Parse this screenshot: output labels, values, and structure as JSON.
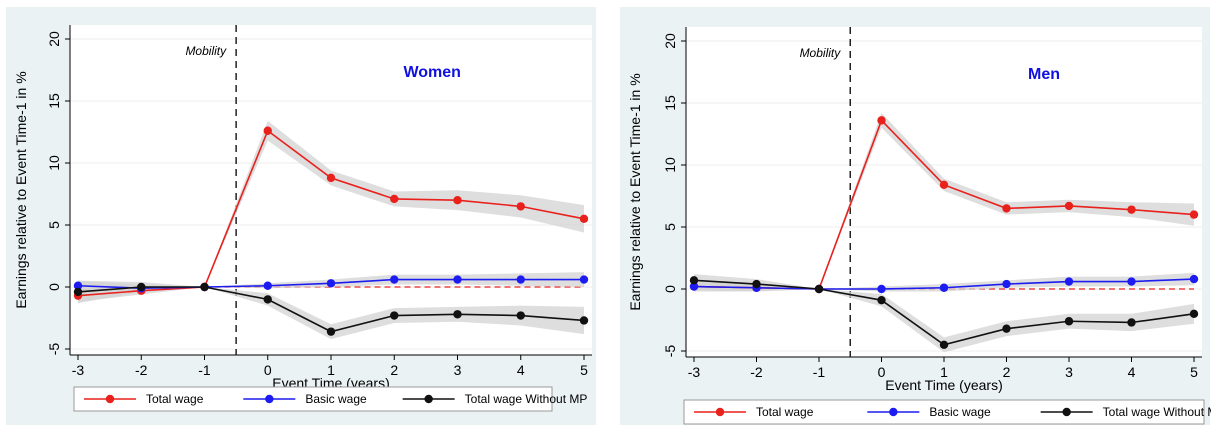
{
  "colors": {
    "outer_bg": "#eaf2f3",
    "plot_bg": "#ffffff",
    "total_wage": "#e8211c",
    "basic_wage": "#1c1cf0",
    "without_mp": "#111111",
    "ci_band": "#d3d3d3",
    "title": "#1010e0",
    "zero_line": "#e8211c"
  },
  "chart_data": [
    {
      "type": "line",
      "title": "Women",
      "annotation": "Mobility",
      "xlabel": "Event Time (years)",
      "ylabel": "Earnings relative to Event Time-1 in %",
      "x": [
        -3,
        -2,
        -1,
        0,
        1,
        2,
        3,
        4,
        5
      ],
      "x_ticks": [
        "-3",
        "-2",
        "-1",
        "0",
        "1",
        "2",
        "3",
        "4",
        "5"
      ],
      "y_ticks": [
        -5,
        0,
        5,
        10,
        15,
        20
      ],
      "xlim": [
        -3,
        5
      ],
      "ylim": [
        -5,
        20
      ],
      "event_line_x": -0.5,
      "grid": true,
      "legend_position": "bottom",
      "series": [
        {
          "name": "Total wage",
          "color_key": "total_wage",
          "values": [
            -0.7,
            -0.3,
            0,
            12.6,
            8.8,
            7.1,
            7.0,
            6.5,
            5.5
          ],
          "ci_low": [
            -1.2,
            -0.6,
            0,
            11.8,
            8.2,
            6.5,
            6.2,
            5.6,
            4.4
          ],
          "ci_high": [
            -0.2,
            0.0,
            0,
            13.4,
            9.4,
            7.7,
            7.8,
            7.4,
            6.6
          ]
        },
        {
          "name": "Basic wage",
          "color_key": "basic_wage",
          "values": [
            0.1,
            -0.1,
            0,
            0.1,
            0.3,
            0.6,
            0.6,
            0.6,
            0.6
          ],
          "ci_low": [
            -0.3,
            -0.4,
            0,
            -0.1,
            0.0,
            0.2,
            0.2,
            0.1,
            0.0
          ],
          "ci_high": [
            0.5,
            0.2,
            0,
            0.3,
            0.6,
            1.0,
            1.0,
            1.1,
            1.2
          ]
        },
        {
          "name": "Total wage Without MP",
          "color_key": "without_mp",
          "values": [
            -0.4,
            0.0,
            0,
            -1.0,
            -3.6,
            -2.3,
            -2.2,
            -2.3,
            -2.7
          ],
          "ci_low": [
            -1.3,
            -0.4,
            0,
            -1.5,
            -4.2,
            -2.9,
            -2.8,
            -3.1,
            -3.8
          ],
          "ci_high": [
            0.5,
            0.4,
            0,
            -0.5,
            -3.0,
            -1.7,
            -1.6,
            -1.5,
            -1.6
          ]
        }
      ]
    },
    {
      "type": "line",
      "title": "Men",
      "annotation": "Mobility",
      "xlabel": "Event Time (years)",
      "ylabel": "Earnings relative to Event Time-1 in %",
      "x": [
        -3,
        -2,
        -1,
        0,
        1,
        2,
        3,
        4,
        5
      ],
      "x_ticks": [
        "-3",
        "-2",
        "-1",
        "0",
        "1",
        "2",
        "3",
        "4",
        "5"
      ],
      "y_ticks": [
        -5,
        0,
        5,
        10,
        15,
        20
      ],
      "xlim": [
        -3,
        5
      ],
      "ylim": [
        -5,
        20
      ],
      "event_line_x": -0.5,
      "grid": true,
      "legend_position": "bottom",
      "series": [
        {
          "name": "Total wage",
          "color_key": "total_wage",
          "values": [
            0.2,
            0.1,
            0,
            13.6,
            8.4,
            6.5,
            6.7,
            6.4,
            6.0
          ],
          "ci_low": [
            -0.2,
            -0.2,
            0,
            13.0,
            7.9,
            6.0,
            6.2,
            5.8,
            5.1
          ],
          "ci_high": [
            0.6,
            0.4,
            0,
            14.2,
            8.9,
            7.0,
            7.2,
            7.0,
            6.9
          ]
        },
        {
          "name": "Basic wage",
          "color_key": "basic_wage",
          "values": [
            0.2,
            0.1,
            0,
            0.0,
            0.1,
            0.4,
            0.6,
            0.6,
            0.8
          ],
          "ci_low": [
            -0.1,
            -0.2,
            0,
            -0.2,
            -0.2,
            0.1,
            0.2,
            0.2,
            0.3
          ],
          "ci_high": [
            0.5,
            0.4,
            0,
            0.2,
            0.4,
            0.7,
            1.0,
            1.0,
            1.3
          ]
        },
        {
          "name": "Total wage Without MP",
          "color_key": "without_mp",
          "values": [
            0.7,
            0.4,
            0,
            -0.9,
            -4.5,
            -3.2,
            -2.6,
            -2.7,
            -2.0
          ],
          "ci_low": [
            0.2,
            0.0,
            0,
            -1.4,
            -5.1,
            -3.8,
            -3.2,
            -3.4,
            -2.8
          ],
          "ci_high": [
            1.2,
            0.8,
            0,
            -0.4,
            -3.9,
            -2.6,
            -2.0,
            -2.0,
            -1.2
          ]
        }
      ]
    }
  ]
}
